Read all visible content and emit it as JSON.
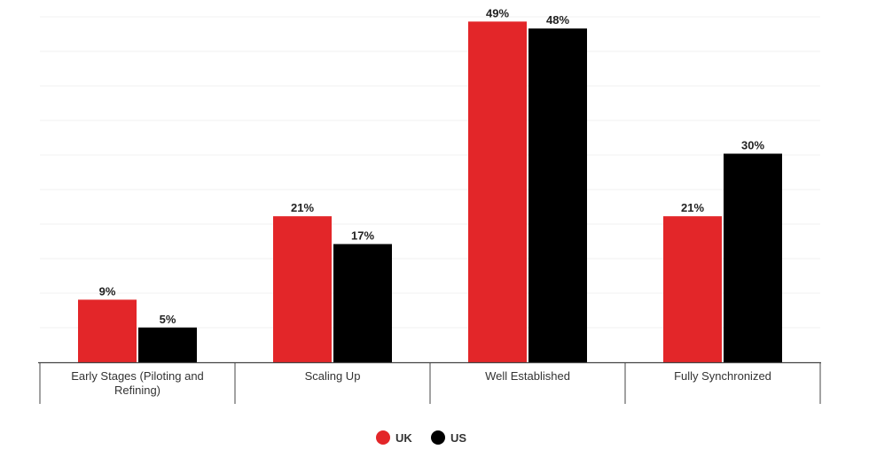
{
  "chart_data": {
    "type": "bar",
    "categories": [
      "Early Stages (Piloting and Refining)",
      "Scaling Up",
      "Well Established",
      "Fully Synchronized"
    ],
    "category_lines": [
      [
        "Early Stages (Piloting and",
        "Refining)"
      ],
      [
        "Scaling Up"
      ],
      [
        "Well Established"
      ],
      [
        "Fully Synchronized"
      ]
    ],
    "series": [
      {
        "name": "UK",
        "color": "#e32629",
        "values": [
          9,
          21,
          49,
          21
        ],
        "labels": [
          "9%",
          "21%",
          "49%",
          "21%"
        ]
      },
      {
        "name": "US",
        "color": "#000000",
        "values": [
          5,
          17,
          48,
          30
        ],
        "labels": [
          "5%",
          "17%",
          "48%",
          "30%"
        ]
      }
    ],
    "ylim": [
      0,
      50
    ],
    "grid": true,
    "legend": "bottom-center",
    "title": "",
    "xlabel": "",
    "ylabel": ""
  }
}
